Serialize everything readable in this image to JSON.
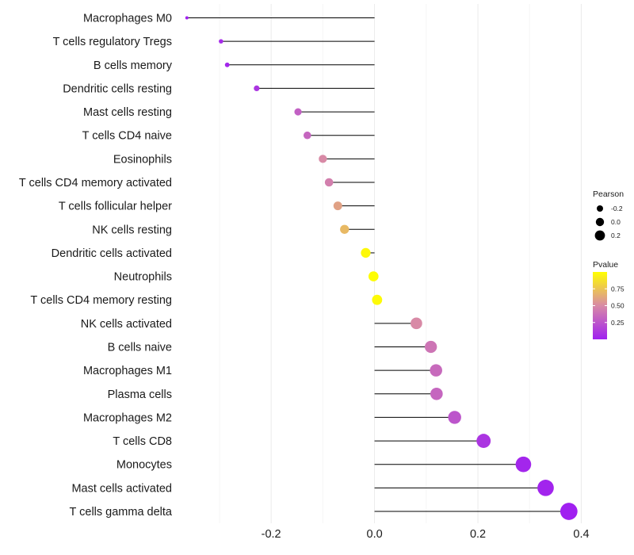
{
  "chart_data": {
    "type": "lollipop",
    "title": "",
    "xlabel": "",
    "ylabel": "",
    "xlim": [
      -0.375,
      0.41
    ],
    "x_ticks": [
      -0.2,
      0.0,
      0.2,
      0.4
    ],
    "x_tick_labels": [
      "-0.2",
      "0.0",
      "0.2",
      "0.4"
    ],
    "grid": true,
    "categories": [
      "Macrophages M0",
      "T cells regulatory  Tregs ",
      "B cells memory",
      "Dendritic cells resting",
      "Mast cells resting",
      "T cells CD4 naive",
      "Eosinophils",
      "T cells CD4 memory activated",
      "T cells follicular helper",
      "NK cells resting",
      "Dendritic cells activated",
      "Neutrophils",
      "T cells CD4 memory resting",
      "NK cells activated",
      "B cells naive",
      "Macrophages M1",
      "Plasma cells",
      "Macrophages M2",
      "T cells CD8",
      "Monocytes",
      "Mast cells activated",
      "T cells gamma delta"
    ],
    "pearson": [
      -0.363,
      -0.297,
      -0.285,
      -0.228,
      -0.148,
      -0.13,
      -0.1,
      -0.088,
      -0.071,
      -0.058,
      -0.017,
      -0.002,
      0.005,
      0.081,
      0.109,
      0.119,
      0.12,
      0.155,
      0.211,
      0.288,
      0.331,
      0.376
    ],
    "pvalue": [
      0.0,
      0.05,
      0.03,
      0.1,
      0.3,
      0.33,
      0.5,
      0.45,
      0.6,
      0.7,
      0.97,
      0.99,
      0.98,
      0.5,
      0.4,
      0.35,
      0.33,
      0.25,
      0.1,
      0.03,
      0.02,
      0.0
    ],
    "legend_size": {
      "title": "Pearson",
      "entries": [
        {
          "label": "-0.2",
          "value": -0.2
        },
        {
          "label": "0.0",
          "value": 0.0
        },
        {
          "label": "0.2",
          "value": 0.2
        }
      ],
      "position": "right"
    },
    "legend_color": {
      "title": "Pvalue",
      "entries": [
        {
          "label": "0.75",
          "value": 0.75
        },
        {
          "label": "0.50",
          "value": 0.5
        },
        {
          "label": "0.25",
          "value": 0.25
        }
      ],
      "range": [
        0.0,
        1.0
      ],
      "low_color": "#a020f0",
      "high_color": "#ffff00",
      "position": "right"
    },
    "colors": {
      "stem": "#000000",
      "grid": "#ebebeb",
      "background": "#ffffff"
    }
  }
}
